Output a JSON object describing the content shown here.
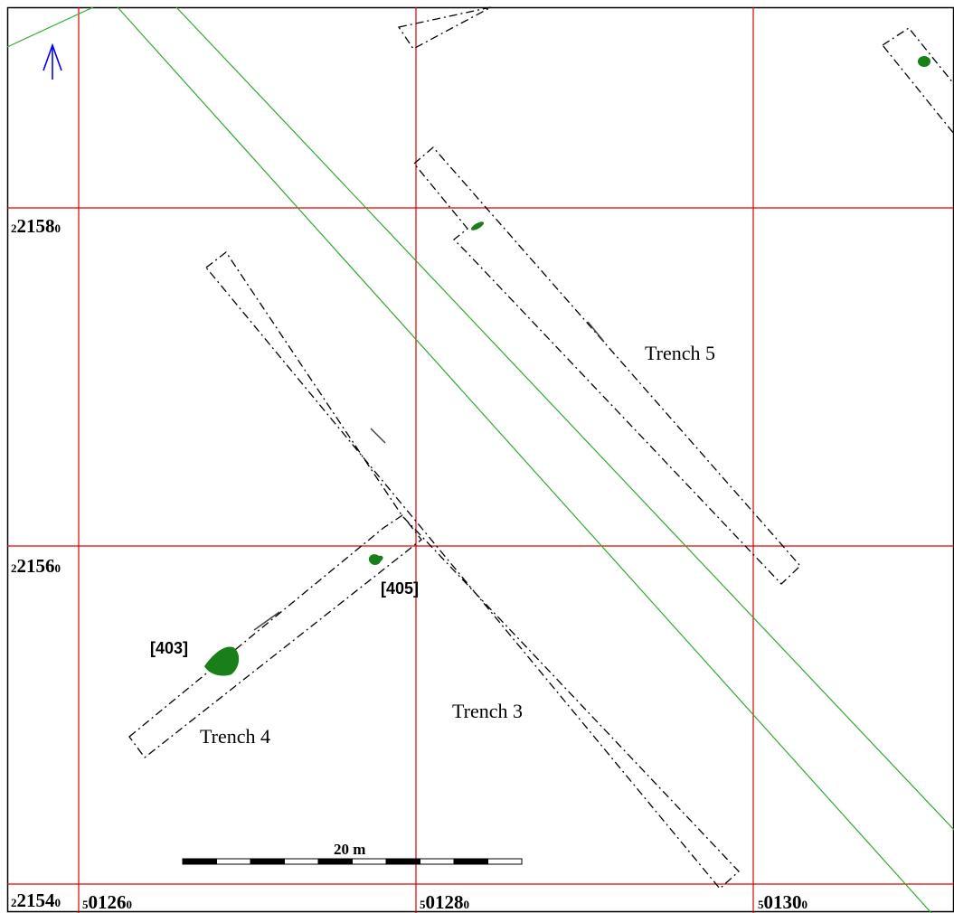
{
  "map": {
    "north_arrow": "north-arrow-icon",
    "colors": {
      "grid": "#e00000",
      "boundary": "#2eaa2e",
      "feature": "#1a7f1a",
      "trench": "#000000",
      "north_arrow": "#0000ff"
    },
    "northings": [
      {
        "prefix": "2",
        "main": "2158",
        "suffix": "0"
      },
      {
        "prefix": "2",
        "main": "2156",
        "suffix": "0"
      },
      {
        "prefix": "2",
        "main": "2154",
        "suffix": "0"
      }
    ],
    "eastings": [
      {
        "prefix": "5",
        "main": "0126",
        "suffix": "0"
      },
      {
        "prefix": "5",
        "main": "0128",
        "suffix": "0"
      },
      {
        "prefix": "5",
        "main": "0130",
        "suffix": "0"
      }
    ],
    "trenches": [
      "Trench 5",
      "Trench 3",
      "Trench 4"
    ],
    "features": [
      "[405]",
      "[403]"
    ],
    "scale_bar": {
      "label": "20 m",
      "length_m": 20
    }
  }
}
